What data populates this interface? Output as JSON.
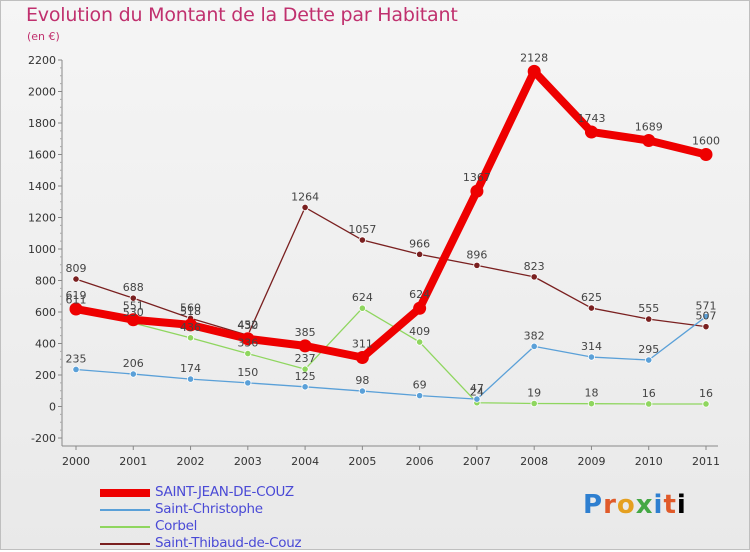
{
  "title": "Evolution du Montant de la Dette par Habitant",
  "subtitle": "(en €)",
  "logo": [
    "P",
    "r",
    "o",
    "x",
    "i",
    "t",
    "i"
  ],
  "chart_data": {
    "type": "line",
    "title": "Evolution du Montant de la Dette par Habitant",
    "subtitle": "(en €)",
    "xlabel": "",
    "ylabel": "",
    "x": [
      "2000",
      "2001",
      "2002",
      "2003",
      "2004",
      "2005",
      "2006",
      "2007",
      "2008",
      "2009",
      "2010",
      "2011"
    ],
    "ylim": [
      -200,
      2200
    ],
    "yticks": [
      -200,
      0,
      200,
      400,
      600,
      800,
      1000,
      1200,
      1400,
      1600,
      1800,
      2000,
      2200
    ],
    "grid": false,
    "legend": "bottom-left",
    "series": [
      {
        "name": "Saint-Thibaud-de-Couz",
        "color": "#7a2020",
        "values": [
          809,
          688,
          560,
          452,
          1264,
          1057,
          966,
          896,
          823,
          625,
          555,
          507
        ],
        "labels": [
          "809",
          "688",
          "560",
          "452",
          "1264",
          "1057",
          "966",
          "896",
          "823",
          "625",
          "555",
          "507"
        ]
      },
      {
        "name": "Corbel",
        "color": "#8fd65f",
        "values": [
          611,
          530,
          436,
          336,
          237,
          624,
          409,
          24,
          19,
          18,
          16,
          16
        ],
        "labels": [
          "611",
          "530",
          "436",
          "336",
          "237",
          "624",
          "409",
          "24",
          "19",
          "18",
          "16",
          "16"
        ]
      },
      {
        "name": "Saint-Christophe",
        "color": "#5aa0d8",
        "values": [
          235,
          206,
          174,
          150,
          125,
          98,
          69,
          47,
          382,
          314,
          295,
          571
        ],
        "labels": [
          "235",
          "206",
          "174",
          "150",
          "125",
          "98",
          "69",
          "47",
          "382",
          "314",
          "295",
          "571"
        ]
      },
      {
        "name": "SAINT-JEAN-DE-COUZ",
        "color": "#ee0000",
        "values": [
          619,
          551,
          518,
          430,
          385,
          311,
          624,
          1367,
          2128,
          1743,
          1689,
          1600
        ],
        "labels": [
          "619",
          "551",
          "518",
          "430",
          "385",
          "311",
          "624",
          "1367",
          "2128",
          "1743",
          "1689",
          "1600"
        ]
      }
    ],
    "legend_order": [
      "SAINT-JEAN-DE-COUZ",
      "Saint-Christophe",
      "Corbel",
      "Saint-Thibaud-de-Couz"
    ]
  }
}
